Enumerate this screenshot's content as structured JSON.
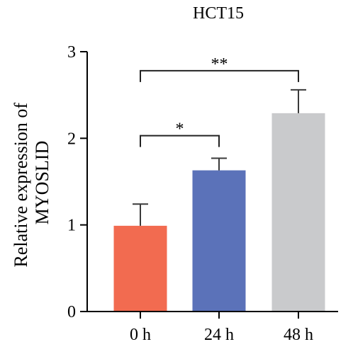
{
  "chart_data": {
    "type": "bar",
    "title": "HCT15",
    "xlabel": "",
    "ylabel": [
      "Relative expression of",
      "MYOSLID"
    ],
    "categories": [
      "0 h",
      "24 h",
      "48 h"
    ],
    "values": [
      0.99,
      1.63,
      2.29
    ],
    "errors": [
      0.25,
      0.14,
      0.27
    ],
    "colors": [
      "#f26b50",
      "#5b72b9",
      "#c9cacc"
    ],
    "ylim": [
      0,
      3
    ],
    "yticks": [
      0,
      1,
      2,
      3
    ],
    "grid": false,
    "significance": [
      {
        "from": 0,
        "to": 1,
        "label": "*",
        "y": 2.03
      },
      {
        "from": 0,
        "to": 2,
        "label": "**",
        "y": 2.78
      }
    ]
  }
}
